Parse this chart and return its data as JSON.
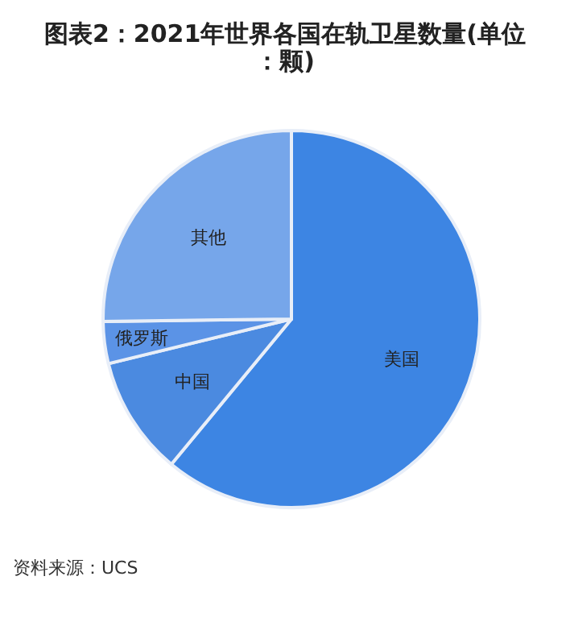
{
  "chart_data": {
    "type": "pie",
    "title": "图表2：2021年世界各国在轨卫星数量(单位：颗)",
    "categories": [
      "美国",
      "中国",
      "俄罗斯",
      "其他"
    ],
    "values": [
      61,
      10.2,
      3.6,
      25.2
    ],
    "colors": [
      "#3d85e3",
      "#4b8ae0",
      "#5b93e6",
      "#76a6ea"
    ],
    "annotations": [
      "资料来源：UCS"
    ]
  }
}
